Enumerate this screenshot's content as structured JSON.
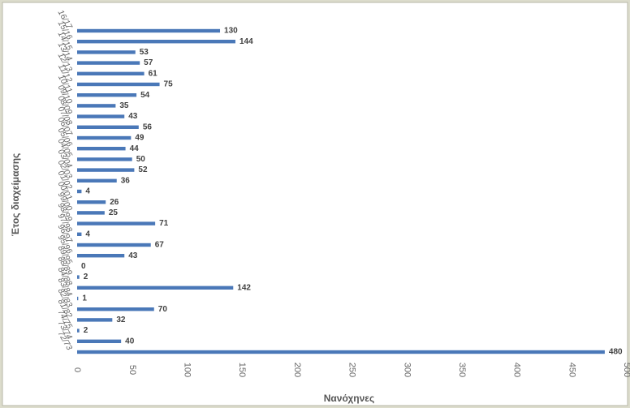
{
  "chart_data": {
    "type": "hbar",
    "x_label": "Νανόχηνες",
    "y_label": "Έτος διαχείμασης",
    "categories": [
      "72/73",
      "73/74",
      "74/75",
      "81/82",
      "82/83",
      "83/84",
      "84/88",
      "88/89",
      "89/95",
      "95/96",
      "96/97",
      "97/98",
      "98/99",
      "99/00",
      "00/01",
      "01/02",
      "02/03",
      "03/04",
      "04/05",
      "05/06",
      "06/07",
      "07/08",
      "08/09",
      "09/10",
      "10/11",
      "11/12",
      "12/13",
      "13/14",
      "14/15",
      "15/16",
      "16/17"
    ],
    "values": [
      480,
      40,
      2,
      32,
      70,
      1,
      142,
      2,
      0,
      43,
      67,
      4,
      71,
      25,
      26,
      4,
      36,
      52,
      50,
      44,
      49,
      56,
      43,
      35,
      54,
      75,
      61,
      57,
      53,
      144,
      130
    ],
    "color": "#4a78b8",
    "xlim": [
      0,
      500
    ],
    "xticks": [
      0,
      50,
      100,
      150,
      200,
      250,
      300,
      350,
      400,
      450,
      500
    ],
    "grid": false
  }
}
